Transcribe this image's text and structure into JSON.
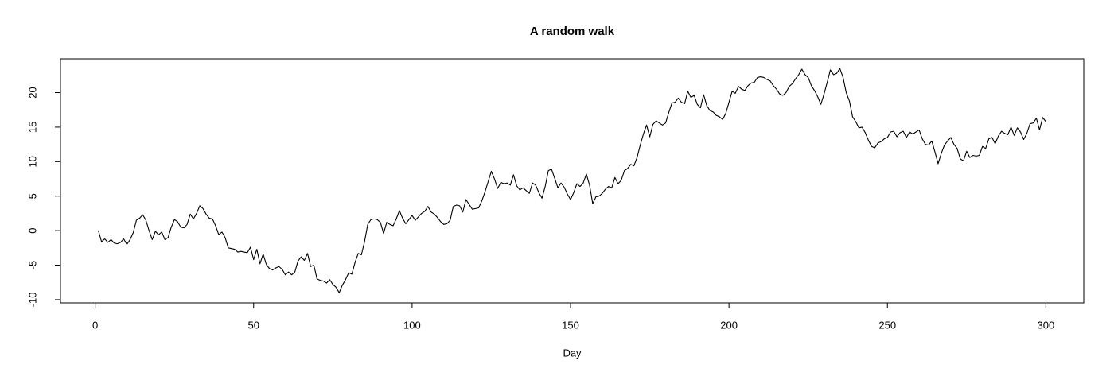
{
  "chart_data": {
    "type": "line",
    "title": "A random walk",
    "x_label": "Day",
    "color": "#000000",
    "xlim": [
      -10.96,
      311.96
    ],
    "xticks": [
      0,
      50,
      100,
      150,
      200,
      250,
      300
    ],
    "ylim": [
      -10.47,
      24.9
    ],
    "yticks": [
      -10,
      -5,
      0,
      5,
      10,
      15,
      20
    ],
    "x": [
      1,
      2,
      3,
      4,
      5,
      6,
      7,
      8,
      9,
      10,
      11,
      12,
      13,
      14,
      15,
      16,
      17,
      18,
      19,
      20,
      21,
      22,
      23,
      24,
      25,
      26,
      27,
      28,
      29,
      30,
      31,
      32,
      33,
      34,
      35,
      36,
      37,
      38,
      39,
      40,
      41,
      42,
      43,
      44,
      45,
      46,
      47,
      48,
      49,
      50,
      51,
      52,
      53,
      54,
      55,
      56,
      57,
      58,
      59,
      60,
      61,
      62,
      63,
      64,
      65,
      66,
      67,
      68,
      69,
      70,
      71,
      72,
      73,
      74,
      75,
      76,
      77,
      78,
      79,
      80,
      81,
      82,
      83,
      84,
      85,
      86,
      87,
      88,
      89,
      90,
      91,
      92,
      93,
      94,
      95,
      96,
      97,
      98,
      99,
      100,
      101,
      102,
      103,
      104,
      105,
      106,
      107,
      108,
      109,
      110,
      111,
      112,
      113,
      114,
      115,
      116,
      117,
      118,
      119,
      120,
      121,
      122,
      123,
      124,
      125,
      126,
      127,
      128,
      129,
      130,
      131,
      132,
      133,
      134,
      135,
      136,
      137,
      138,
      139,
      140,
      141,
      142,
      143,
      144,
      145,
      146,
      147,
      148,
      149,
      150,
      151,
      152,
      153,
      154,
      155,
      156,
      157,
      158,
      159,
      160,
      161,
      162,
      163,
      164,
      165,
      166,
      167,
      168,
      169,
      170,
      171,
      172,
      173,
      174,
      175,
      176,
      177,
      178,
      179,
      180,
      181,
      182,
      183,
      184,
      185,
      186,
      187,
      188,
      189,
      190,
      191,
      192,
      193,
      194,
      195,
      196,
      197,
      198,
      199,
      200,
      201,
      202,
      203,
      204,
      205,
      206,
      207,
      208,
      209,
      210,
      211,
      212,
      213,
      214,
      215,
      216,
      217,
      218,
      219,
      220,
      221,
      222,
      223,
      224,
      225,
      226,
      227,
      228,
      229,
      230,
      231,
      232,
      233,
      234,
      235,
      236,
      237,
      238,
      239,
      240,
      241,
      242,
      243,
      244,
      245,
      246,
      247,
      248,
      249,
      250,
      251,
      252,
      253,
      254,
      255,
      256,
      257,
      258,
      259,
      260,
      261,
      262,
      263,
      264,
      265,
      266,
      267,
      268,
      269,
      270,
      271,
      272,
      273,
      274,
      275,
      276,
      277,
      278,
      279,
      280,
      281,
      282,
      283,
      284,
      285,
      286,
      287,
      288,
      289,
      290,
      291,
      292,
      293,
      294,
      295,
      296,
      297,
      298,
      299,
      300
    ],
    "values": [
      0,
      -1.6,
      -1.2,
      -1.7,
      -1.3,
      -1.8,
      -1.9,
      -1.7,
      -1.2,
      -2.0,
      -1.3,
      -0.3,
      1.5,
      1.8,
      2.3,
      1.5,
      0,
      -1.3,
      -0.1,
      -0.6,
      -0.2,
      -1.3,
      -1.0,
      0.5,
      1.6,
      1.3,
      0.5,
      0.4,
      0.9,
      2.4,
      1.7,
      2.5,
      3.6,
      3.2,
      2.4,
      1.8,
      1.7,
      0.7,
      -0.6,
      -0.2,
      -1.0,
      -2.5,
      -2.6,
      -2.7,
      -3.1,
      -3.0,
      -3.1,
      -3.2,
      -2.4,
      -4.2,
      -2.7,
      -4.8,
      -3.4,
      -4.9,
      -5.5,
      -5.7,
      -5.4,
      -5.2,
      -5.6,
      -6.4,
      -6.0,
      -6.4,
      -6.0,
      -4.4,
      -3.8,
      -4.3,
      -3.3,
      -5.2,
      -5.0,
      -7.0,
      -7.2,
      -7.3,
      -7.6,
      -7.1,
      -7.8,
      -8.2,
      -9.0,
      -7.9,
      -7.1,
      -6.1,
      -6.3,
      -4.6,
      -3.3,
      -3.5,
      -1.6,
      0.9,
      1.6,
      1.7,
      1.6,
      1.2,
      -0.4,
      1.2,
      0.9,
      0.7,
      1.7,
      2.9,
      1.8,
      1.0,
      1.6,
      2.2,
      1.5,
      2.0,
      2.5,
      2.8,
      3.5,
      2.7,
      2.4,
      1.9,
      1.3,
      0.9,
      1.0,
      1.5,
      3.5,
      3.7,
      3.6,
      2.7,
      4.5,
      3.8,
      3.1,
      3.2,
      3.3,
      4.3,
      5.6,
      7.1,
      8.6,
      7.5,
      6.1,
      7.0,
      6.8,
      6.9,
      6.6,
      8.1,
      6.5,
      5.9,
      6.2,
      5.8,
      5.4,
      6.9,
      6.6,
      5.5,
      4.7,
      6.4,
      8.7,
      8.9,
      7.6,
      6.2,
      6.9,
      6.3,
      5.3,
      4.5,
      5.5,
      6.8,
      6.4,
      6.9,
      8.2,
      6.6,
      3.9,
      4.9,
      5.0,
      5.4,
      6.0,
      6.4,
      6.2,
      7.7,
      6.8,
      7.3,
      8.7,
      9.0,
      9.6,
      9.4,
      10.6,
      12.4,
      14.0,
      15.3,
      13.6,
      15.4,
      15.9,
      15.6,
      15.3,
      15.6,
      17.1,
      18.5,
      18.6,
      19.2,
      18.6,
      18.4,
      20.2,
      19.3,
      19.6,
      18.3,
      17.8,
      19.7,
      18.1,
      17.4,
      17.2,
      16.7,
      16.5,
      16.1,
      17.0,
      18.6,
      20.2,
      19.9,
      20.9,
      20.5,
      20.3,
      21.0,
      21.4,
      21.5,
      22.2,
      22.3,
      22.2,
      21.9,
      21.7,
      21.0,
      20.5,
      19.8,
      19.6,
      20.0,
      20.9,
      21.3,
      22.0,
      22.6,
      23.4,
      22.6,
      22.2,
      21.0,
      20.3,
      19.4,
      18.3,
      19.8,
      21.5,
      23.3,
      22.6,
      22.8,
      23.5,
      22.2,
      20.0,
      18.8,
      16.5,
      15.8,
      14.9,
      15.0,
      14.2,
      13.1,
      12.2,
      12.0,
      12.7,
      12.9,
      13.3,
      13.5,
      14.3,
      14.4,
      13.6,
      14.2,
      14.4,
      13.5,
      14.3,
      14.0,
      14.3,
      14.6,
      13.3,
      12.5,
      12.4,
      13.0,
      11.4,
      9.7,
      11.2,
      12.4,
      13.0,
      13.5,
      12.5,
      11.9,
      10.4,
      10.1,
      11.5,
      10.6,
      10.9,
      10.8,
      10.9,
      12.2,
      11.9,
      13.3,
      13.5,
      12.6,
      13.7,
      14.4,
      14.1,
      13.9,
      15.0,
      13.8,
      14.9,
      14.3,
      13.2,
      14.1,
      15.5,
      15.6,
      16.3,
      14.6,
      16.4,
      15.8
    ]
  }
}
